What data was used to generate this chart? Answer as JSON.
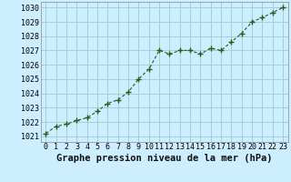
{
  "x": [
    0,
    1,
    2,
    3,
    4,
    5,
    6,
    7,
    8,
    9,
    10,
    11,
    12,
    13,
    14,
    15,
    16,
    17,
    18,
    19,
    20,
    21,
    22,
    23
  ],
  "y": [
    1021.2,
    1021.7,
    1021.85,
    1022.1,
    1022.3,
    1022.75,
    1023.3,
    1023.55,
    1024.1,
    1025.0,
    1025.7,
    1027.0,
    1026.75,
    1027.0,
    1027.0,
    1026.75,
    1027.15,
    1027.0,
    1027.6,
    1028.2,
    1029.0,
    1029.3,
    1029.65,
    1030.0
  ],
  "line_color": "#2d5a1b",
  "marker_color": "#2d5a1b",
  "bg_color": "#cceeff",
  "grid_color": "#99cccc",
  "xlabel": "Graphe pression niveau de la mer (hPa)",
  "xlabel_fontsize": 7.5,
  "ylabel_ticks": [
    1021,
    1022,
    1023,
    1024,
    1025,
    1026,
    1027,
    1028,
    1029,
    1030
  ],
  "xtick_labels": [
    "0",
    "1",
    "2",
    "3",
    "4",
    "5",
    "6",
    "7",
    "8",
    "9",
    "10",
    "11",
    "12",
    "13",
    "14",
    "15",
    "16",
    "17",
    "18",
    "19",
    "20",
    "21",
    "22",
    "23"
  ],
  "ylim": [
    1020.6,
    1030.4
  ],
  "xlim": [
    -0.5,
    23.5
  ]
}
